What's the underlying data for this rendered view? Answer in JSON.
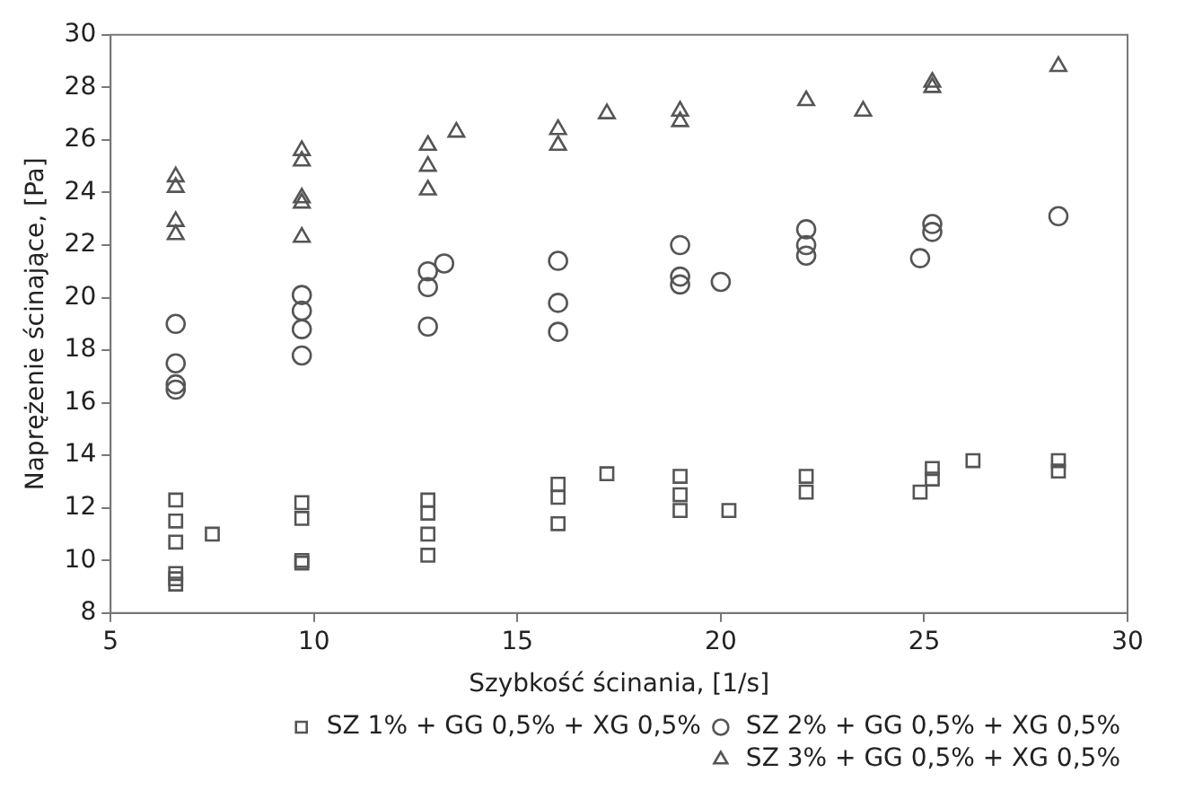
{
  "chart_data": {
    "type": "scatter",
    "xlabel": "Szybkość ścinania, [1/s]",
    "ylabel": "Naprężenie ścinające, [Pa]",
    "xlim": [
      5,
      30
    ],
    "xticks": [
      5,
      10,
      15,
      20,
      25,
      30
    ],
    "ylim": [
      8,
      30
    ],
    "yticks": [
      8,
      10,
      12,
      14,
      16,
      18,
      20,
      22,
      24,
      26,
      28,
      30
    ],
    "grid": false,
    "legend": "bottom right",
    "series": [
      {
        "name": "SZ 1% + GG 0,5% + XG 0,5%",
        "color": "#555555",
        "marker": "square",
        "x": [
          6.6,
          6.6,
          6.6,
          6.6,
          6.6,
          6.6,
          7.5,
          9.7,
          9.7,
          9.7,
          9.7,
          12.8,
          12.8,
          12.8,
          12.8,
          16,
          16,
          16,
          17.2,
          19,
          19,
          19,
          20.2,
          22.1,
          22.1,
          25.2,
          25.2,
          24.9,
          26.2,
          28.3,
          28.3
        ],
        "values": [
          12.3,
          11.5,
          10.7,
          9.5,
          9.3,
          9.1,
          11.0,
          12.2,
          11.6,
          10.0,
          9.9,
          12.3,
          11.8,
          11.0,
          10.2,
          12.9,
          12.4,
          11.4,
          13.3,
          13.2,
          12.5,
          11.9,
          11.9,
          13.2,
          12.6,
          13.5,
          13.1,
          12.6,
          13.8,
          13.8,
          13.4
        ]
      },
      {
        "name": "SZ 2% + GG 0,5% + XG 0,5%",
        "color": "#555555",
        "marker": "circle",
        "x": [
          6.6,
          6.6,
          6.6,
          6.6,
          9.7,
          9.7,
          9.7,
          9.7,
          12.8,
          13.2,
          12.8,
          12.8,
          16,
          16,
          16,
          19,
          19,
          19,
          20,
          22.1,
          22.1,
          22.1,
          25.2,
          25.2,
          24.9,
          28.3
        ],
        "values": [
          19.0,
          17.5,
          16.7,
          16.5,
          20.1,
          19.5,
          18.8,
          17.8,
          21.0,
          21.3,
          20.4,
          18.9,
          21.4,
          19.8,
          18.7,
          22.0,
          20.8,
          20.5,
          20.6,
          22.6,
          22.0,
          21.6,
          22.8,
          22.5,
          21.5,
          23.1
        ]
      },
      {
        "name": "SZ 3% + GG 0,5% + XG 0,5%",
        "color": "#555555",
        "marker": "triangle",
        "x": [
          6.6,
          6.6,
          6.6,
          6.6,
          9.7,
          9.7,
          9.7,
          9.7,
          9.7,
          12.8,
          12.8,
          12.8,
          13.5,
          16,
          16,
          17.2,
          19,
          19,
          22.1,
          23.5,
          25.2,
          25.2,
          28.3
        ],
        "values": [
          24.6,
          24.2,
          22.9,
          22.4,
          25.6,
          25.2,
          23.8,
          23.6,
          22.3,
          25.8,
          25.0,
          24.1,
          26.3,
          26.4,
          25.8,
          27.0,
          27.1,
          26.7,
          27.5,
          27.1,
          28.2,
          28.0,
          28.8
        ]
      }
    ]
  }
}
